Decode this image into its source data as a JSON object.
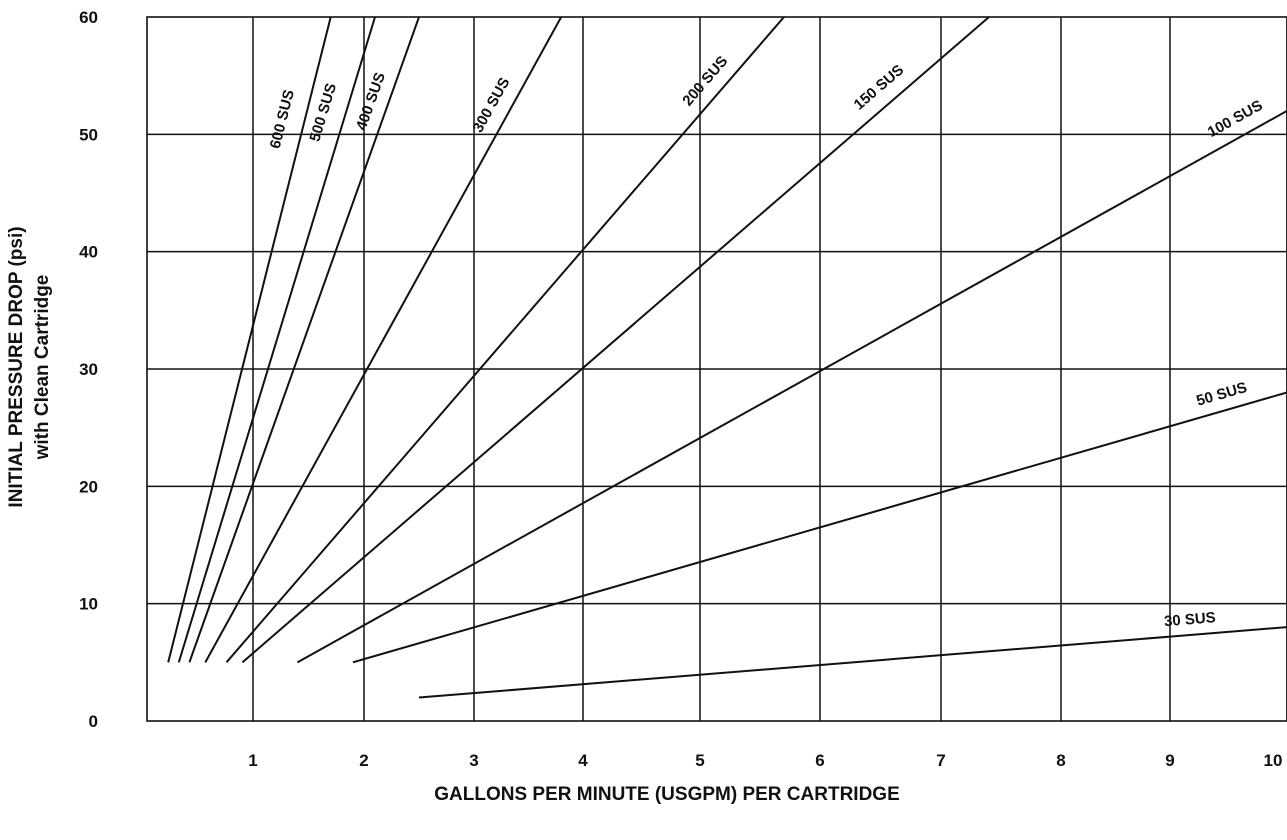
{
  "chart_data": {
    "type": "line",
    "title": "",
    "xlabel": "GALLONS PER MINUTE (USGPM) PER CARTRIDGE",
    "ylabel": "INITIAL PRESSURE DROP (psi)",
    "ylabel2": "with Clean Cartridge",
    "xlim": [
      0,
      10
    ],
    "ylim": [
      0,
      60
    ],
    "x_ticks": [
      "1",
      "2",
      "3",
      "4",
      "5",
      "6",
      "7",
      "8",
      "9",
      "10"
    ],
    "y_ticks": [
      "0",
      "10",
      "20",
      "30",
      "40",
      "50",
      "60"
    ],
    "grid": true,
    "series": [
      {
        "name": "600 SUS",
        "x": [
          0.2,
          1.7
        ],
        "y": [
          5,
          60
        ]
      },
      {
        "name": "500 SUS",
        "x": [
          0.3,
          2.1
        ],
        "y": [
          5,
          60
        ]
      },
      {
        "name": "400 SUS",
        "x": [
          0.4,
          2.5
        ],
        "y": [
          5,
          60
        ]
      },
      {
        "name": "300 SUS",
        "x": [
          0.55,
          3.8
        ],
        "y": [
          5,
          60
        ]
      },
      {
        "name": "200 SUS",
        "x": [
          0.75,
          5.7
        ],
        "y": [
          5,
          60
        ]
      },
      {
        "name": "150 SUS",
        "x": [
          0.9,
          7.4
        ],
        "y": [
          5,
          60
        ]
      },
      {
        "name": "100 SUS",
        "x": [
          1.4,
          10
        ],
        "y": [
          5,
          52
        ]
      },
      {
        "name": "50 SUS",
        "x": [
          1.9,
          10
        ],
        "y": [
          5,
          28
        ]
      },
      {
        "name": "30 SUS",
        "x": [
          2.5,
          10
        ],
        "y": [
          2,
          8
        ]
      }
    ]
  }
}
